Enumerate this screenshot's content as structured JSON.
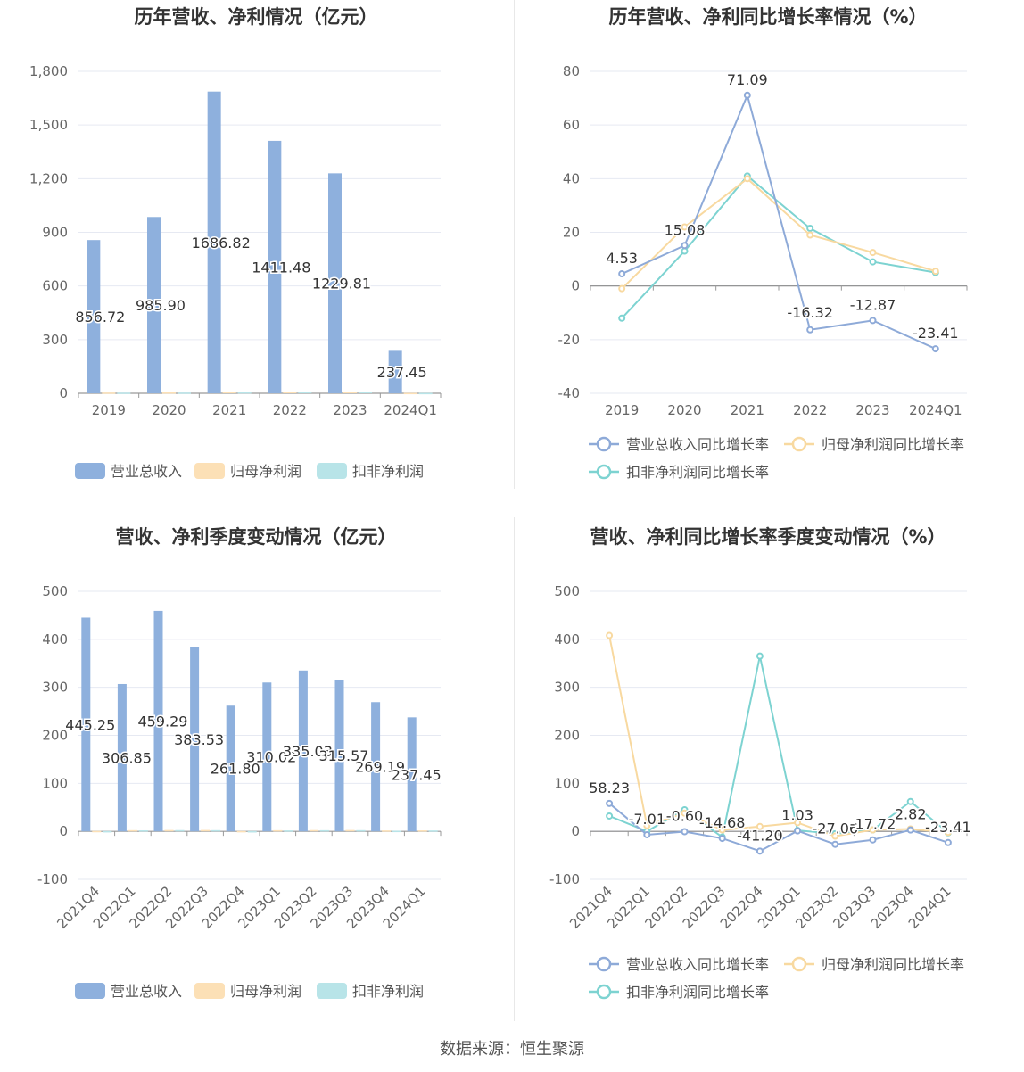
{
  "footer": "数据来源：恒生聚源",
  "colors": {
    "revenue": "#8EB0DD",
    "parent": "#FCE0B6",
    "deducted": "#B8E4E8",
    "revenue_line": "#8EAAD8",
    "parent_line": "#F8D9A0",
    "deducted_line": "#7DD3D1",
    "axis": "#666666",
    "grid": "#E6E9F2"
  },
  "legend": {
    "bar": [
      "营业总收入",
      "归母净利润",
      "扣非净利润"
    ],
    "line": [
      "营业总收入同比增长率",
      "归母净利润同比增长率",
      "扣非净利润同比增长率"
    ]
  },
  "chart_data": [
    {
      "type": "bar",
      "title": "历年营收、净利情况（亿元）",
      "categories": [
        "2019",
        "2020",
        "2021",
        "2022",
        "2023",
        "2024Q1"
      ],
      "ylim": [
        0,
        1800
      ],
      "yticks": [
        0,
        300,
        600,
        900,
        1200,
        1500,
        1800
      ],
      "ytick_labels": [
        "0",
        "300",
        "600",
        "900",
        "1,200",
        "1,500",
        "1,800"
      ],
      "series": [
        {
          "name": "营业总收入",
          "values": [
            856.72,
            985.9,
            1686.82,
            1411.48,
            1229.81,
            237.45
          ]
        },
        {
          "name": "归母净利润",
          "values": [
            4.2,
            5.1,
            7.3,
            8.7,
            9.8,
            2.1
          ]
        },
        {
          "name": "扣非净利润",
          "values": [
            3.6,
            4.1,
            5.8,
            7.3,
            8.0,
            1.9
          ]
        }
      ],
      "data_labels": [
        "856.72",
        "985.90",
        "1686.82",
        "1411.48",
        "1229.81",
        "237.45"
      ],
      "legend_position": "bottom",
      "grid": true
    },
    {
      "type": "line",
      "title": "历年营收、净利同比增长率情况（%）",
      "categories": [
        "2019",
        "2020",
        "2021",
        "2022",
        "2023",
        "2024Q1"
      ],
      "ylim": [
        -40,
        80
      ],
      "yticks": [
        -40,
        -20,
        0,
        20,
        40,
        60,
        80
      ],
      "ytick_labels": [
        "-40",
        "-20",
        "0",
        "20",
        "40",
        "60",
        "80"
      ],
      "series": [
        {
          "name": "营业总收入同比增长率",
          "values": [
            4.53,
            15.08,
            71.09,
            -16.32,
            -12.87,
            -23.41
          ]
        },
        {
          "name": "归母净利润同比增长率",
          "values": [
            -1,
            22,
            40,
            19,
            12.5,
            5.5
          ]
        },
        {
          "name": "扣非净利润同比增长率",
          "values": [
            -12,
            13,
            41,
            21.5,
            9,
            5
          ]
        }
      ],
      "data_labels": [
        "4.53",
        "15.08",
        "71.09",
        "-16.32",
        "-12.87",
        "-23.41"
      ],
      "legend_position": "bottom",
      "grid": true
    },
    {
      "type": "bar",
      "title": "营收、净利季度变动情况（亿元）",
      "categories": [
        "2021Q4",
        "2022Q1",
        "2022Q2",
        "2022Q3",
        "2022Q4",
        "2023Q1",
        "2023Q2",
        "2023Q3",
        "2023Q4",
        "2024Q1"
      ],
      "ylim": [
        -100,
        500
      ],
      "yticks": [
        -100,
        0,
        100,
        200,
        300,
        400,
        500
      ],
      "ytick_labels": [
        "-100",
        "0",
        "100",
        "200",
        "300",
        "400",
        "500"
      ],
      "series": [
        {
          "name": "营业总收入",
          "values": [
            445.25,
            306.85,
            459.29,
            383.53,
            261.8,
            310.02,
            335.03,
            315.57,
            269.19,
            237.45
          ]
        },
        {
          "name": "归母净利润",
          "values": [
            0.8,
            2.5,
            2.8,
            2.9,
            0.6,
            2.4,
            2.7,
            2.8,
            1.9,
            2.1
          ]
        },
        {
          "name": "扣非净利润",
          "values": [
            0.5,
            2.2,
            2.6,
            2.5,
            0.4,
            2.0,
            2.4,
            2.5,
            1.1,
            1.9
          ]
        }
      ],
      "data_labels": [
        "445.25",
        "306.85",
        "459.29",
        "383.53",
        "261.80",
        "310.02",
        "335.03",
        "315.57",
        "269.19",
        "237.45"
      ],
      "legend_position": "bottom",
      "grid": true
    },
    {
      "type": "line",
      "title": "营收、净利同比增长率季度变动情况（%）",
      "categories": [
        "2021Q4",
        "2022Q1",
        "2022Q2",
        "2022Q3",
        "2022Q4",
        "2023Q1",
        "2023Q2",
        "2023Q3",
        "2023Q4",
        "2024Q1"
      ],
      "ylim": [
        -100,
        500
      ],
      "yticks": [
        -100,
        0,
        100,
        200,
        300,
        400,
        500
      ],
      "ytick_labels": [
        "-100",
        "0",
        "100",
        "200",
        "300",
        "400",
        "500"
      ],
      "series": [
        {
          "name": "营业总收入同比增长率",
          "values": [
            58.23,
            -7.01,
            -0.6,
            -14.68,
            -41.2,
            1.03,
            -27.06,
            -17.72,
            2.82,
            -23.41
          ]
        },
        {
          "name": "归母净利润同比增长率",
          "values": [
            408,
            12,
            38,
            3,
            10,
            18,
            -10,
            3,
            5,
            -2
          ]
        },
        {
          "name": "扣非净利润同比增长率",
          "values": [
            32,
            0,
            45,
            -12,
            365,
            2,
            -5,
            3,
            62,
            -3
          ]
        }
      ],
      "data_labels": [
        "58.23",
        "-7.01",
        "-0.60",
        "-14.68",
        "-41.20",
        "1.03",
        "-27.06",
        "-17.72",
        "2.82",
        "-23.41"
      ],
      "legend_position": "bottom",
      "grid": true
    }
  ]
}
